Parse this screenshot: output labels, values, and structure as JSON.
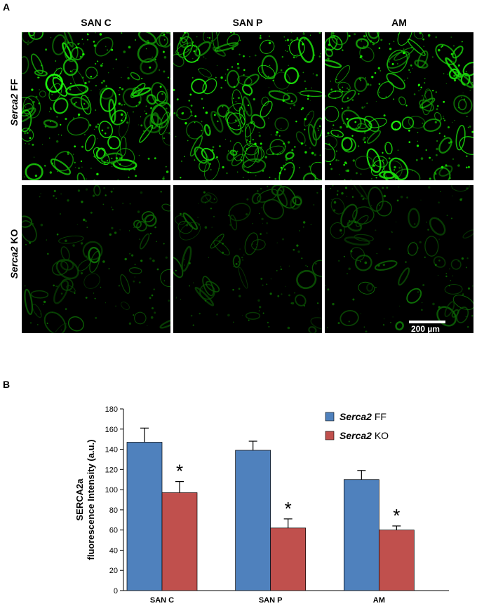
{
  "panel_a": {
    "letter": "A",
    "columns": [
      "SAN C",
      "SAN P",
      "AM"
    ],
    "rows": [
      {
        "italic": "Serca2",
        "rest": " FF",
        "brightness": 1.0
      },
      {
        "italic": "Serca2",
        "rest": " KO",
        "brightness": 0.45
      }
    ],
    "scale_bar_label": "200 µm"
  },
  "panel_b": {
    "letter": "B"
  },
  "legend": [
    {
      "italic": "Serca2",
      "rest": " FF",
      "color": "#4f81bd"
    },
    {
      "italic": "Serca2",
      "rest": " KO",
      "color": "#c0504d"
    }
  ],
  "chart_data": {
    "type": "bar",
    "categories": [
      "SAN C",
      "SAN P",
      "AM"
    ],
    "series": [
      {
        "name": "Serca2 FF",
        "color": "#4f81bd",
        "values": [
          147,
          139,
          110
        ],
        "errors": [
          14,
          9,
          9
        ]
      },
      {
        "name": "Serca2 KO",
        "color": "#c0504d",
        "values": [
          97,
          62,
          60
        ],
        "errors": [
          11,
          9,
          4
        ]
      }
    ],
    "significance": [
      "*",
      "*",
      "*"
    ],
    "ylabel_line1": "SERCA2a",
    "ylabel_line2": "fluorescence Intensity (a.u.)",
    "ylim": [
      0,
      180
    ],
    "yticks": [
      0,
      20,
      40,
      60,
      80,
      100,
      120,
      140,
      160,
      180
    ],
    "grid": false,
    "legend_position": "top-right"
  }
}
